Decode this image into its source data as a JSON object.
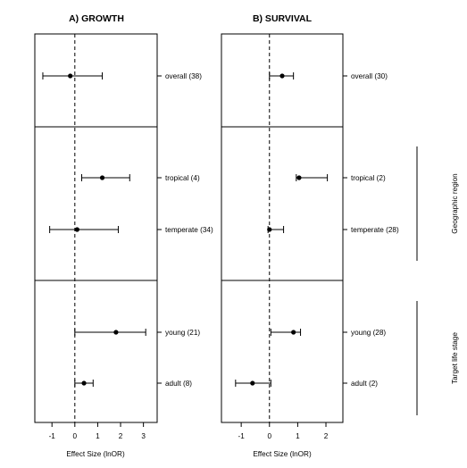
{
  "chart_data": [
    {
      "type": "scatter",
      "subtype": "forest-plot",
      "title": "A) GROWTH",
      "xlabel": "Effect Size (lnOR)",
      "xlim": [
        -1.75,
        3.6
      ],
      "xticks": [
        "-1",
        "0",
        "1",
        "2",
        "3"
      ],
      "reference_line": 0,
      "rows": [
        {
          "label": "overall (38)",
          "estimate": -0.2,
          "lower": -1.4,
          "upper": 1.2
        },
        {
          "label": "tropical (4)",
          "estimate": 1.2,
          "lower": 0.3,
          "upper": 2.4
        },
        {
          "label": "temperate (34)",
          "estimate": 0.1,
          "lower": -1.1,
          "upper": 1.9
        },
        {
          "label": "young (21)",
          "estimate": 1.8,
          "lower": 0.0,
          "upper": 3.1
        },
        {
          "label": "adult (8)",
          "estimate": 0.4,
          "lower": 0.0,
          "upper": 0.8
        }
      ]
    },
    {
      "type": "scatter",
      "subtype": "forest-plot",
      "title": "B) SURVIVAL",
      "xlabel": "Effect Size (lnOR)",
      "xlim": [
        -1.7,
        2.6
      ],
      "xticks": [
        "-1",
        "0",
        "1",
        "2"
      ],
      "reference_line": 0,
      "rows": [
        {
          "label": "overall (30)",
          "estimate": 0.45,
          "lower": 0.0,
          "upper": 0.85
        },
        {
          "label": "tropical (2)",
          "estimate": 1.05,
          "lower": 0.95,
          "upper": 2.05
        },
        {
          "label": "temperate (28)",
          "estimate": 0.0,
          "lower": -0.05,
          "upper": 0.5
        },
        {
          "label": "young (28)",
          "estimate": 0.85,
          "lower": 0.05,
          "upper": 1.1
        },
        {
          "label": "adult (2)",
          "estimate": -0.6,
          "lower": -1.2,
          "upper": 0.05
        }
      ]
    }
  ],
  "groups": [
    "Geographic region",
    "Target life stage"
  ]
}
